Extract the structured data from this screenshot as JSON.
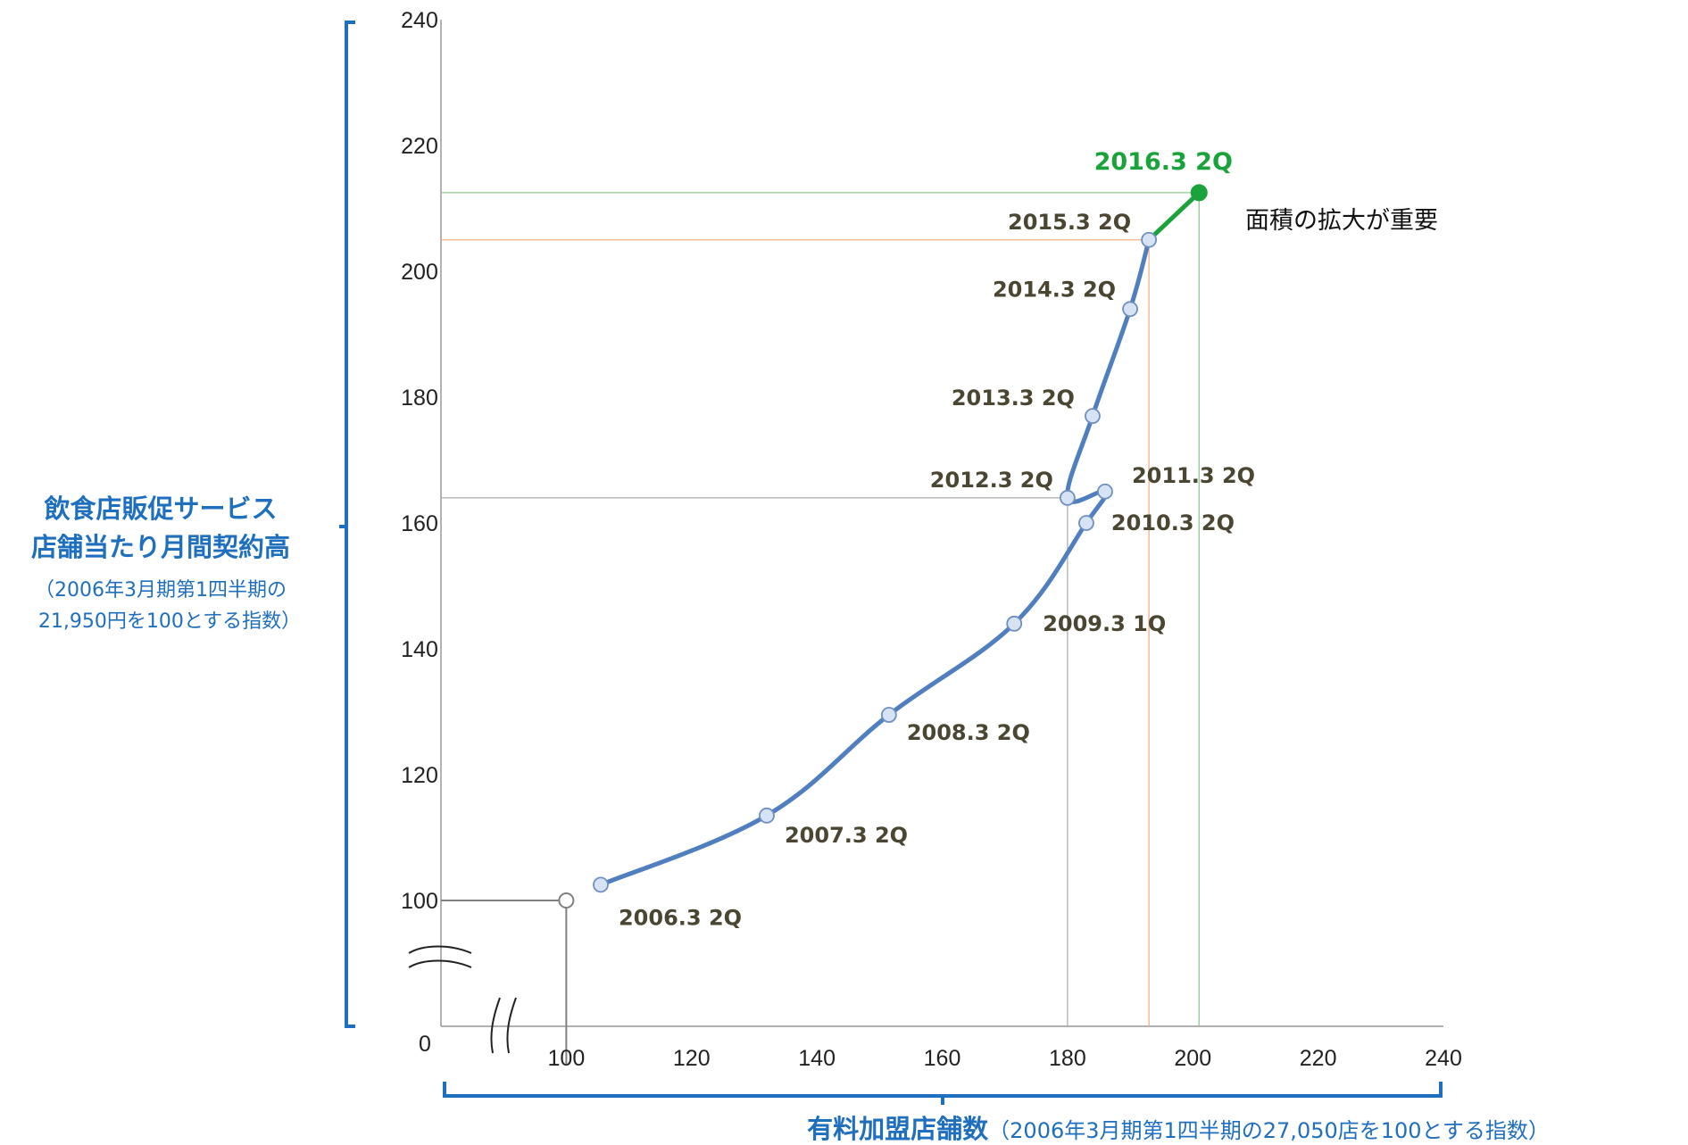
{
  "chart_data": {
    "type": "line",
    "x_axis": {
      "range": [
        80,
        240
      ],
      "ticks": [
        "100",
        "120",
        "140",
        "160",
        "180",
        "200",
        "220",
        "240"
      ],
      "origin_label": "0",
      "break": true
    },
    "y_axis": {
      "range": [
        80,
        240
      ],
      "ticks": [
        "100",
        "120",
        "140",
        "160",
        "180",
        "200",
        "220",
        "240"
      ],
      "break": true
    },
    "ylabel": {
      "title_line1": "飲食店販促サービス",
      "title_line2": "店舗当たり月間契約高",
      "note_line1": "（2006年3月期第1四半期の",
      "note_line2": "21,950円を100とする指数）"
    },
    "xlabel": {
      "title": "有料加盟店舗数",
      "note": "（2006年3月期第1四半期の27,050店を100とする指数）"
    },
    "annotation": "面積の拡大が重要",
    "baseline_point": {
      "x": 100,
      "y": 100
    },
    "series": [
      {
        "points": [
          {
            "label": "2006.3 2Q",
            "x": 105.5,
            "y": 102.5
          },
          {
            "label": "2007.3 2Q",
            "x": 132,
            "y": 113.5
          },
          {
            "label": "2008.3 2Q",
            "x": 151.5,
            "y": 129.5
          },
          {
            "label": "2009.3 1Q",
            "x": 171.5,
            "y": 144
          },
          {
            "label": "2010.3 2Q",
            "x": 183,
            "y": 160
          },
          {
            "label": "2011.3 2Q",
            "x": 186,
            "y": 165
          },
          {
            "label": "2012.3 2Q",
            "x": 180,
            "y": 164
          },
          {
            "label": "2013.3 2Q",
            "x": 184,
            "y": 177
          },
          {
            "label": "2014.3 2Q",
            "x": 190,
            "y": 194
          },
          {
            "label": "2015.3 2Q",
            "x": 193,
            "y": 205
          }
        ]
      },
      {
        "points": [
          {
            "label": "2015.3 2Q",
            "x": 193,
            "y": 205
          },
          {
            "label": "2016.3 2Q",
            "x": 201,
            "y": 212.5
          }
        ]
      }
    ],
    "reference_lines": [
      {
        "x": 180,
        "y": 164
      },
      {
        "x": 193,
        "y": 205
      },
      {
        "x": 201,
        "y": 212.5
      }
    ],
    "colors": {
      "series_line": "#4f7fbf",
      "marker_fill": "#d6e3f5",
      "highlight": "#1aa33a",
      "guide_grey": "#b0b0b0",
      "guide_orange": "#f4b183",
      "guide_green": "#8fc98f",
      "bracket": "#1f6fbf",
      "point_label": "#4a4632"
    }
  }
}
